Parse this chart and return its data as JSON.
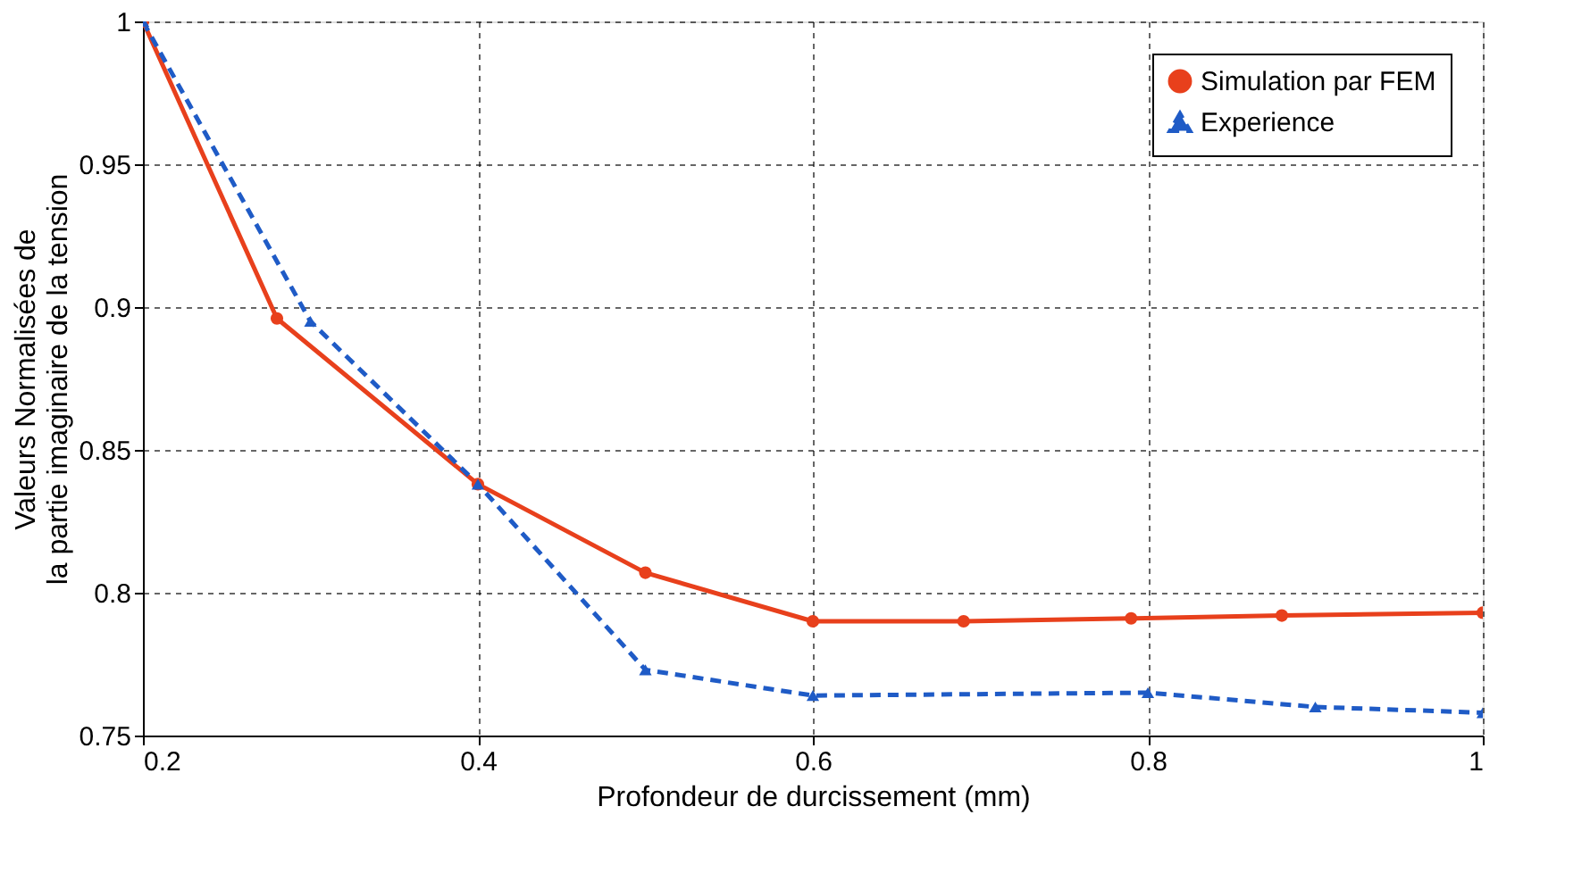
{
  "chart_data": {
    "type": "line",
    "xlabel": "Profondeur de durcissement (mm)",
    "ylabel": "Valeurs Normalisées de\nla partie imaginaire de la tension",
    "xlim": [
      0.2,
      1
    ],
    "xticks": [
      0.2,
      0.4,
      0.6,
      0.8,
      1
    ],
    "ylim": [
      0.75,
      1
    ],
    "yticks": [
      0.75,
      0.8,
      0.85,
      0.9,
      0.95,
      1
    ],
    "grid": true,
    "legend": "top right",
    "series": [
      {
        "name": "Simulation par FEM",
        "color": "#e8401c",
        "marker": "circle",
        "line_style": "solid",
        "x": [
          0.2,
          0.28,
          0.4,
          0.5,
          0.6,
          0.69,
          0.79,
          0.88,
          1.0
        ],
        "values": [
          1,
          0.896,
          0.838,
          0.807,
          0.79,
          0.79,
          0.791,
          0.792,
          0.793
        ]
      },
      {
        "name": "Experience",
        "color": "#1f5bc6",
        "marker": "triangle",
        "line_style": "dashed",
        "x": [
          0.2,
          0.3,
          0.4,
          0.5,
          0.6,
          0.8,
          0.9,
          1.0
        ],
        "values": [
          1,
          0.895,
          0.838,
          0.773,
          0.764,
          0.765,
          0.76,
          0.758
        ]
      }
    ]
  }
}
